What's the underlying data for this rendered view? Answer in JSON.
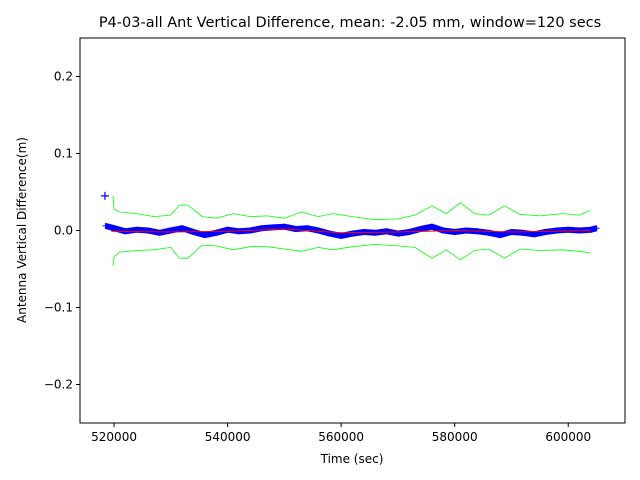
{
  "chart_data": {
    "type": "scatter",
    "title": "P4-03-all Ant Vertical Difference, mean: -2.05 mm, window=120 secs",
    "xlabel": "Time (sec)",
    "ylabel": "Antenna Vertical Difference(m)",
    "xlim": [
      514000,
      610000
    ],
    "ylim": [
      -0.25,
      0.25
    ],
    "x_ticks": [
      520000,
      540000,
      560000,
      580000,
      600000
    ],
    "x_tick_labels": [
      "520000",
      "540000",
      "560000",
      "580000",
      "600000"
    ],
    "y_ticks": [
      -0.2,
      -0.1,
      0.0,
      0.1,
      0.2
    ],
    "y_tick_labels": [
      "−0.2",
      "−0.1",
      "0.0",
      "0.1",
      "0.2"
    ],
    "grid": false,
    "legend": "none",
    "colors": {
      "points": "#0000ff",
      "mean_line": "#ff0000",
      "band": "#00ff00"
    },
    "outlier": {
      "x": 518400,
      "y": 0.045
    },
    "series": [
      {
        "values": [
          {
            "x": 518500,
            "y": 0.006
          },
          {
            "x": 520000,
            "y": 0.003
          },
          {
            "x": 522000,
            "y": -0.001
          },
          {
            "x": 524000,
            "y": 0.001
          },
          {
            "x": 526000,
            "y": 0.0
          },
          {
            "x": 528000,
            "y": -0.003
          },
          {
            "x": 530000,
            "y": 0.0
          },
          {
            "x": 532000,
            "y": 0.003
          },
          {
            "x": 534000,
            "y": -0.002
          },
          {
            "x": 536000,
            "y": -0.006
          },
          {
            "x": 538000,
            "y": -0.003
          },
          {
            "x": 540000,
            "y": 0.001
          },
          {
            "x": 542000,
            "y": -0.001
          },
          {
            "x": 544000,
            "y": 0.0
          },
          {
            "x": 546000,
            "y": 0.003
          },
          {
            "x": 548000,
            "y": 0.004
          },
          {
            "x": 550000,
            "y": 0.005
          },
          {
            "x": 552000,
            "y": 0.002
          },
          {
            "x": 554000,
            "y": 0.003
          },
          {
            "x": 556000,
            "y": 0.0
          },
          {
            "x": 558000,
            "y": -0.004
          },
          {
            "x": 560000,
            "y": -0.007
          },
          {
            "x": 562000,
            "y": -0.004
          },
          {
            "x": 564000,
            "y": -0.002
          },
          {
            "x": 566000,
            "y": -0.003
          },
          {
            "x": 568000,
            "y": -0.001
          },
          {
            "x": 570000,
            "y": -0.004
          },
          {
            "x": 572000,
            "y": -0.002
          },
          {
            "x": 574000,
            "y": 0.002
          },
          {
            "x": 576000,
            "y": 0.005
          },
          {
            "x": 578000,
            "y": 0.0
          },
          {
            "x": 580000,
            "y": -0.002
          },
          {
            "x": 582000,
            "y": 0.0
          },
          {
            "x": 584000,
            "y": -0.001
          },
          {
            "x": 586000,
            "y": -0.003
          },
          {
            "x": 588000,
            "y": -0.006
          },
          {
            "x": 590000,
            "y": -0.002
          },
          {
            "x": 592000,
            "y": -0.003
          },
          {
            "x": 594000,
            "y": -0.005
          },
          {
            "x": 596000,
            "y": -0.002
          },
          {
            "x": 598000,
            "y": 0.0
          },
          {
            "x": 600000,
            "y": 0.001
          },
          {
            "x": 602000,
            "y": 0.0
          },
          {
            "x": 604000,
            "y": 0.001
          },
          {
            "x": 605000,
            "y": 0.003
          }
        ]
      },
      {
        "values": [
          {
            "x": 519500,
            "y": -0.001
          },
          {
            "x": 530000,
            "y": -0.002
          },
          {
            "x": 540000,
            "y": -0.001
          },
          {
            "x": 550000,
            "y": 0.002
          },
          {
            "x": 560000,
            "y": -0.003
          },
          {
            "x": 570000,
            "y": -0.002
          },
          {
            "x": 580000,
            "y": 0.0
          },
          {
            "x": 590000,
            "y": -0.002
          },
          {
            "x": 604000,
            "y": 0.0
          }
        ]
      },
      {
        "values": [
          {
            "x": 519800,
            "y": 0.045
          },
          {
            "x": 520000,
            "y": 0.028
          },
          {
            "x": 521000,
            "y": 0.024
          },
          {
            "x": 524000,
            "y": 0.022
          },
          {
            "x": 527000,
            "y": 0.018
          },
          {
            "x": 530000,
            "y": 0.02
          },
          {
            "x": 531500,
            "y": 0.033
          },
          {
            "x": 533000,
            "y": 0.033
          },
          {
            "x": 535500,
            "y": 0.018
          },
          {
            "x": 538000,
            "y": 0.016
          },
          {
            "x": 541000,
            "y": 0.022
          },
          {
            "x": 544000,
            "y": 0.018
          },
          {
            "x": 547000,
            "y": 0.019
          },
          {
            "x": 550000,
            "y": 0.016
          },
          {
            "x": 553000,
            "y": 0.024
          },
          {
            "x": 556000,
            "y": 0.018
          },
          {
            "x": 558500,
            "y": 0.022
          },
          {
            "x": 562000,
            "y": 0.018
          },
          {
            "x": 566000,
            "y": 0.014
          },
          {
            "x": 570000,
            "y": 0.015
          },
          {
            "x": 573000,
            "y": 0.02
          },
          {
            "x": 576000,
            "y": 0.032
          },
          {
            "x": 578500,
            "y": 0.022
          },
          {
            "x": 581000,
            "y": 0.036
          },
          {
            "x": 583500,
            "y": 0.022
          },
          {
            "x": 586000,
            "y": 0.02
          },
          {
            "x": 588800,
            "y": 0.032
          },
          {
            "x": 591500,
            "y": 0.021
          },
          {
            "x": 595000,
            "y": 0.019
          },
          {
            "x": 599000,
            "y": 0.022
          },
          {
            "x": 602000,
            "y": 0.02
          },
          {
            "x": 603800,
            "y": 0.026
          }
        ]
      },
      {
        "values": [
          {
            "x": 519800,
            "y": -0.046
          },
          {
            "x": 520000,
            "y": -0.034
          },
          {
            "x": 521000,
            "y": -0.028
          },
          {
            "x": 524000,
            "y": -0.026
          },
          {
            "x": 527000,
            "y": -0.025
          },
          {
            "x": 530000,
            "y": -0.022
          },
          {
            "x": 531500,
            "y": -0.036
          },
          {
            "x": 533000,
            "y": -0.036
          },
          {
            "x": 535500,
            "y": -0.019
          },
          {
            "x": 538000,
            "y": -0.02
          },
          {
            "x": 541000,
            "y": -0.025
          },
          {
            "x": 544000,
            "y": -0.021
          },
          {
            "x": 547000,
            "y": -0.021
          },
          {
            "x": 550000,
            "y": -0.024
          },
          {
            "x": 553000,
            "y": -0.027
          },
          {
            "x": 556000,
            "y": -0.022
          },
          {
            "x": 558500,
            "y": -0.025
          },
          {
            "x": 562000,
            "y": -0.021
          },
          {
            "x": 566000,
            "y": -0.018
          },
          {
            "x": 570000,
            "y": -0.02
          },
          {
            "x": 573000,
            "y": -0.022
          },
          {
            "x": 576000,
            "y": -0.036
          },
          {
            "x": 578500,
            "y": -0.025
          },
          {
            "x": 581000,
            "y": -0.038
          },
          {
            "x": 583500,
            "y": -0.026
          },
          {
            "x": 586000,
            "y": -0.024
          },
          {
            "x": 588800,
            "y": -0.036
          },
          {
            "x": 591500,
            "y": -0.024
          },
          {
            "x": 595000,
            "y": -0.026
          },
          {
            "x": 599000,
            "y": -0.025
          },
          {
            "x": 602000,
            "y": -0.027
          },
          {
            "x": 603800,
            "y": -0.029
          }
        ]
      }
    ]
  }
}
